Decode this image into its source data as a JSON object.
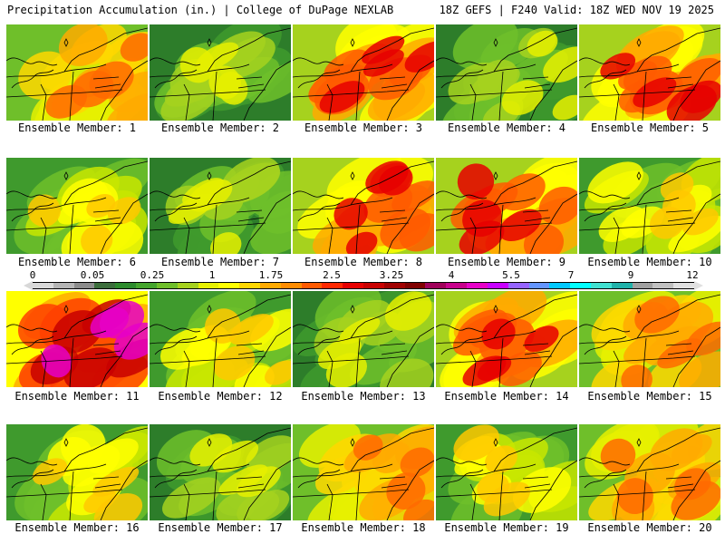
{
  "header": {
    "title": "Precipitation Accumulation (in.) | College of DuPage NEXLAB",
    "run_info": "18Z GEFS | F240 Valid: 18Z WED NOV 19 2025"
  },
  "panels": [
    {
      "label": "Ensemble Member: 1",
      "intensity": "medium-high"
    },
    {
      "label": "Ensemble Member: 2",
      "intensity": "low"
    },
    {
      "label": "Ensemble Member: 3",
      "intensity": "high"
    },
    {
      "label": "Ensemble Member: 4",
      "intensity": "low"
    },
    {
      "label": "Ensemble Member: 5",
      "intensity": "high"
    },
    {
      "label": "Ensemble Member: 6",
      "intensity": "medium"
    },
    {
      "label": "Ensemble Member: 7",
      "intensity": "low"
    },
    {
      "label": "Ensemble Member: 8",
      "intensity": "high"
    },
    {
      "label": "Ensemble Member: 9",
      "intensity": "high"
    },
    {
      "label": "Ensemble Member: 10",
      "intensity": "medium"
    },
    {
      "label": "Ensemble Member: 11",
      "intensity": "very-high"
    },
    {
      "label": "Ensemble Member: 12",
      "intensity": "medium"
    },
    {
      "label": "Ensemble Member: 13",
      "intensity": "low"
    },
    {
      "label": "Ensemble Member: 14",
      "intensity": "high"
    },
    {
      "label": "Ensemble Member: 15",
      "intensity": "medium-high"
    },
    {
      "label": "Ensemble Member: 16",
      "intensity": "medium"
    },
    {
      "label": "Ensemble Member: 17",
      "intensity": "low"
    },
    {
      "label": "Ensemble Member: 18",
      "intensity": "medium-high"
    },
    {
      "label": "Ensemble Member: 19",
      "intensity": "medium"
    },
    {
      "label": "Ensemble Member: 20",
      "intensity": "medium-high"
    }
  ],
  "colorbar": {
    "ticks": [
      "0",
      "0.05",
      "0.25",
      "1",
      "1.75",
      "2.5",
      "3.25",
      "4",
      "5.5",
      "7",
      "9",
      "12"
    ],
    "colors": [
      "#d8d8d8",
      "#b4b4b4",
      "#8c8c8c",
      "#3c6e3c",
      "#2d8c2d",
      "#45a62d",
      "#6fbf2a",
      "#a6d21e",
      "#e6f000",
      "#ffff00",
      "#ffd700",
      "#ffaa00",
      "#ff8c00",
      "#ff5a00",
      "#ff2800",
      "#e60000",
      "#c80000",
      "#a00000",
      "#800000",
      "#a0005a",
      "#c8008c",
      "#e600c8",
      "#c800ff",
      "#9664ff",
      "#6496ff",
      "#00c8ff",
      "#00ffff",
      "#40e0d0",
      "#20b2aa",
      "#a0a0a0",
      "#c0c0c0",
      "#e0e0e0"
    ]
  }
}
